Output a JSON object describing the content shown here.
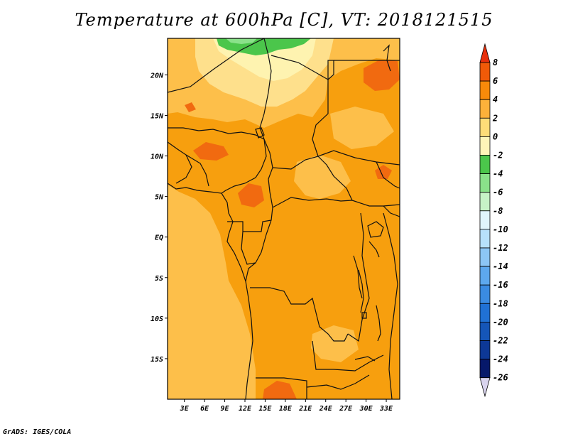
{
  "title": "Temperature at 600hPa [C], VT: 2018121515",
  "footer": "GrADS: IGES/COLA",
  "map": {
    "lon_range": [
      0.5,
      35.0
    ],
    "lat_range": [
      -20.0,
      24.5
    ],
    "lat_ticks": [
      {
        "value": 20,
        "label": "20N"
      },
      {
        "value": 15,
        "label": "15N"
      },
      {
        "value": 10,
        "label": "10N"
      },
      {
        "value": 5,
        "label": "5N"
      },
      {
        "value": 0,
        "label": "EQ"
      },
      {
        "value": -5,
        "label": "5S"
      },
      {
        "value": -10,
        "label": "10S"
      },
      {
        "value": -15,
        "label": "15S"
      }
    ],
    "lon_ticks": [
      {
        "value": 3,
        "label": "3E"
      },
      {
        "value": 6,
        "label": "6E"
      },
      {
        "value": 9,
        "label": "9E"
      },
      {
        "value": 12,
        "label": "12E"
      },
      {
        "value": 15,
        "label": "15E"
      },
      {
        "value": 18,
        "label": "18E"
      },
      {
        "value": 21,
        "label": "21E"
      },
      {
        "value": 24,
        "label": "24E"
      },
      {
        "value": 27,
        "label": "27E"
      },
      {
        "value": 30,
        "label": "30E"
      },
      {
        "value": 33,
        "label": "33E"
      }
    ]
  },
  "colorbar": {
    "levels": [
      8,
      6,
      4,
      2,
      0,
      -2,
      -4,
      -6,
      -8,
      -10,
      -12,
      -14,
      -16,
      -18,
      -20,
      -22,
      -24,
      -26
    ],
    "colors": [
      "#e8300c",
      "#f05a08",
      "#f78a0a",
      "#fcb13a",
      "#fedd78",
      "#fef5b8",
      "#4bc64b",
      "#8ae28a",
      "#c7f3c7",
      "#e1f5fc",
      "#b7e1fb",
      "#8cc6f5",
      "#5da8ee",
      "#3a8be2",
      "#2071d4",
      "#1556b8",
      "#0d3896",
      "#06186a",
      "#d9d4ee"
    ]
  },
  "colors": {
    "warm_base": "#f79f0e",
    "coast_band": "#fdbf4a",
    "hot_patch": "#f16a10",
    "pale": "#fee08c",
    "very_pale": "#fef3b0",
    "green": "#4bc64b",
    "light_green": "#8ae28a",
    "border": "#111111"
  }
}
